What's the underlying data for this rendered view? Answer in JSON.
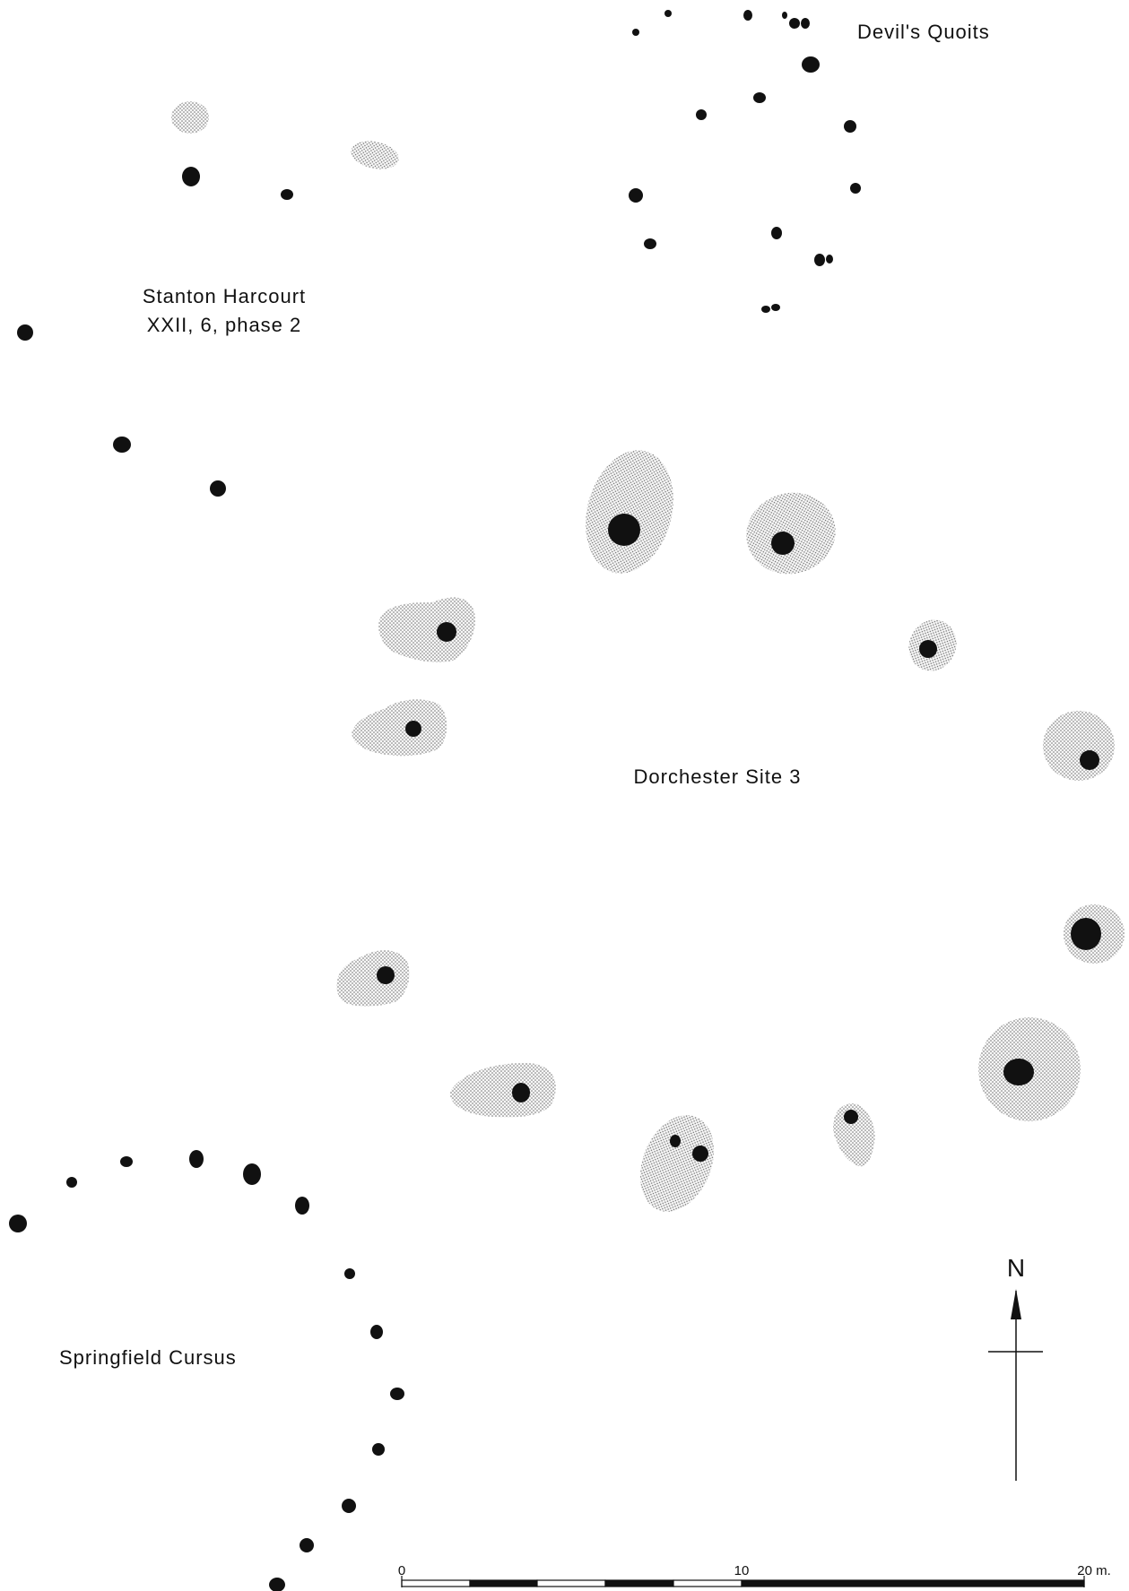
{
  "labels": {
    "devils_quoits": "Devil's Quoits",
    "stanton_line1": "Stanton Harcourt",
    "stanton_line2": "XXII, 6, phase 2",
    "dorchester": "Dorchester Site 3",
    "springfield": "Springfield Cursus"
  },
  "north_arrow": {
    "label": "N"
  },
  "scale_bar": {
    "tick_0": "0",
    "tick_10": "10",
    "tick_20": "20 m."
  },
  "colors": {
    "ink": "#111111",
    "stipple": "#6a6a6a",
    "background": "#ffffff"
  }
}
